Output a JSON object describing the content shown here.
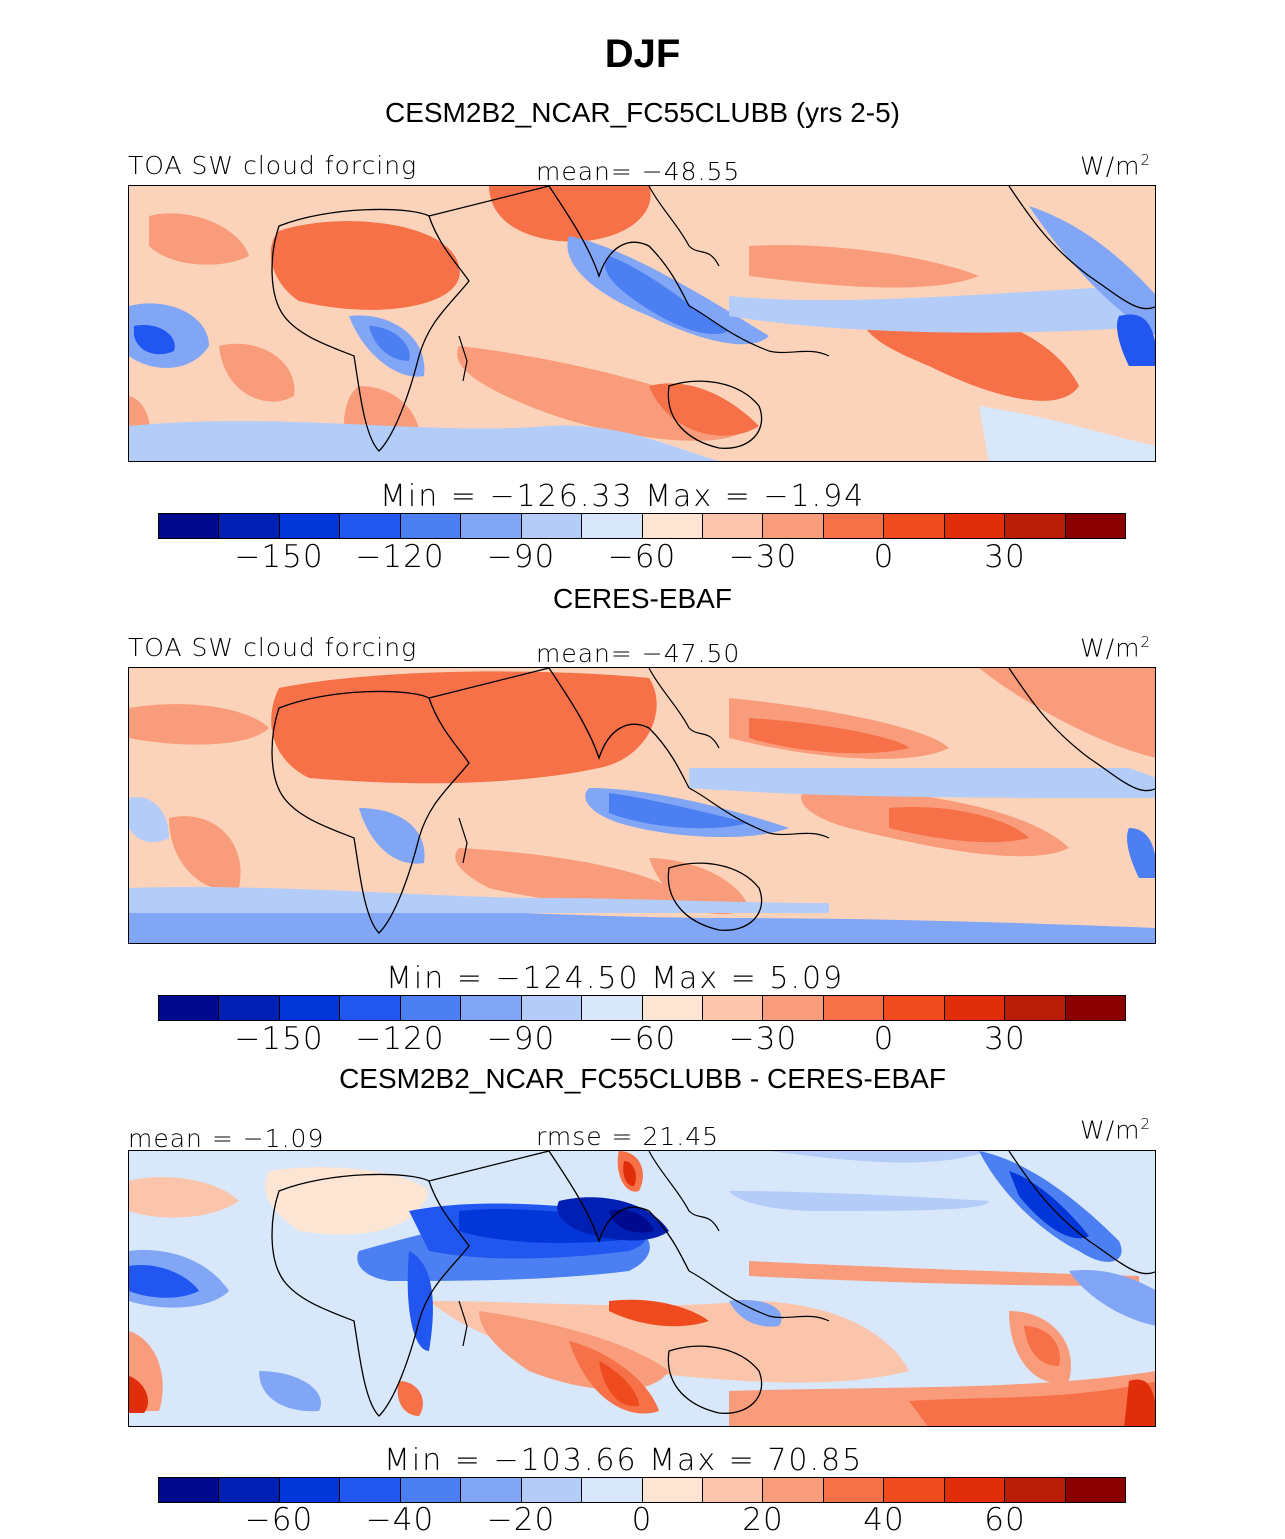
{
  "figure": {
    "title": "DJF",
    "units_base": "W/m",
    "units_exp": "2"
  },
  "panels": [
    {
      "header": "CESM2B2_NCAR_FC55CLUBB (yrs 2-5)",
      "left_label": "TOA SW cloud forcing",
      "center_label": "mean=  −48.55",
      "minmax": "Min  =  −126.33  Max  =    −1.94",
      "ticks": [
        "−150",
        "−120",
        "−90",
        "−60",
        "−30",
        "0",
        "30"
      ]
    },
    {
      "header": "CERES-EBAF",
      "left_label": "TOA SW cloud forcing",
      "center_label": "mean=  −47.50",
      "minmax": "Min  =  −124.50  Max  =     5.09",
      "ticks": [
        "−150",
        "−120",
        "−90",
        "−60",
        "−30",
        "0",
        "30"
      ]
    },
    {
      "header": "CESM2B2_NCAR_FC55CLUBB - CERES-EBAF",
      "left_label": "mean =   −1.09",
      "center_label": "rmse =   21.45",
      "minmax": "Min  =  −103.66  Max  =   70.85",
      "ticks": [
        "−60",
        "−40",
        "−20",
        "0",
        "20",
        "40",
        "60"
      ]
    }
  ],
  "colorbar_colors": [
    "#000a8c",
    "#0020b4",
    "#0336d8",
    "#2156f0",
    "#4c7ff2",
    "#80a6f5",
    "#b3ccf8",
    "#d8e7fa",
    "#fde5d3",
    "#fbc5ab",
    "#f99c7b",
    "#f67048",
    "#f04a1f",
    "#e02e0a",
    "#b81d08",
    "#8a0000"
  ]
}
